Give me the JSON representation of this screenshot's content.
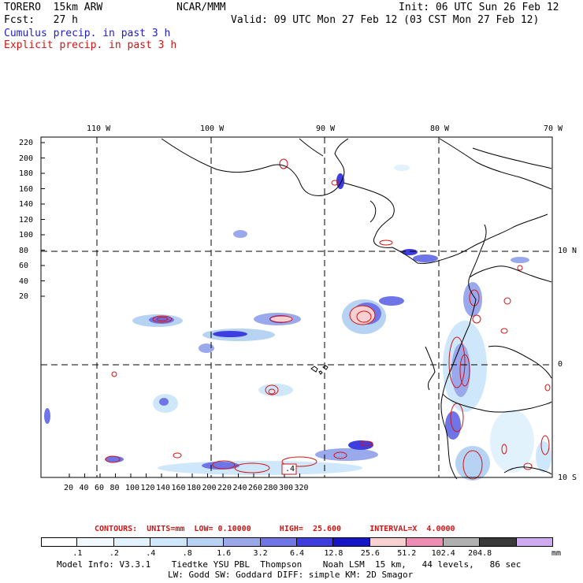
{
  "header": {
    "model": "TORERO  15km ARW",
    "org": "NCAR/MMM",
    "init": "Init: 06 UTC Sun 26 Feb 12",
    "fcst": "Fcst:   27 h",
    "valid": "Valid: 09 UTC Mon 27 Feb 12 (03 CST Mon 27 Feb 12)",
    "line_cumulus": "Cumulus precip. in past 3 h",
    "line_explicit": "Explicit precip. in past 3 h"
  },
  "map": {
    "top_lon_labels": [
      "110 W",
      "100 W",
      "90 W",
      "80 W",
      "70 W"
    ],
    "right_lat_labels": [
      "10 N",
      "0",
      "10 S"
    ],
    "left_ticks": [
      "220",
      "200",
      "180",
      "160",
      "140",
      "120",
      "100",
      "80",
      "60",
      "40",
      "20"
    ],
    "bottom_ticks": [
      "20",
      "40",
      "60",
      "80",
      "100",
      "120",
      "140",
      "160",
      "180",
      "200",
      "220",
      "240",
      "260",
      "280",
      "300",
      "320"
    ],
    "box_label": ".4"
  },
  "contours": {
    "label": "CONTOURS:  UNITS=mm  LOW= 0.10000      HIGH=  25.600      INTERVAL=X  4.0000"
  },
  "colorbar": {
    "levels": [
      ".1",
      ".2",
      ".4",
      ".8",
      "1.6",
      "3.2",
      "6.4",
      "12.8",
      "25.6",
      "51.2",
      "102.4",
      "204.8"
    ],
    "unit": "mm",
    "colors": [
      "#ffffff",
      "#f2f9fe",
      "#e2f2fc",
      "#cfe7fa",
      "#b6d3f4",
      "#9aa8ec",
      "#6f74e6",
      "#3d3de0",
      "#1616c8",
      "#f8d0d2",
      "#ee8cb4",
      "#b0b0b0",
      "#3a3a3a",
      "#cfaaf0"
    ]
  },
  "footer": {
    "line1": "Model Info: V3.3.1    Tiedtke YSU PBL  Thompson    Noah LSM  15 km,   44 levels,   86 sec",
    "line2": "LW: Godd SW: Goddard DIFF: simple KM: 2D Smagor"
  }
}
